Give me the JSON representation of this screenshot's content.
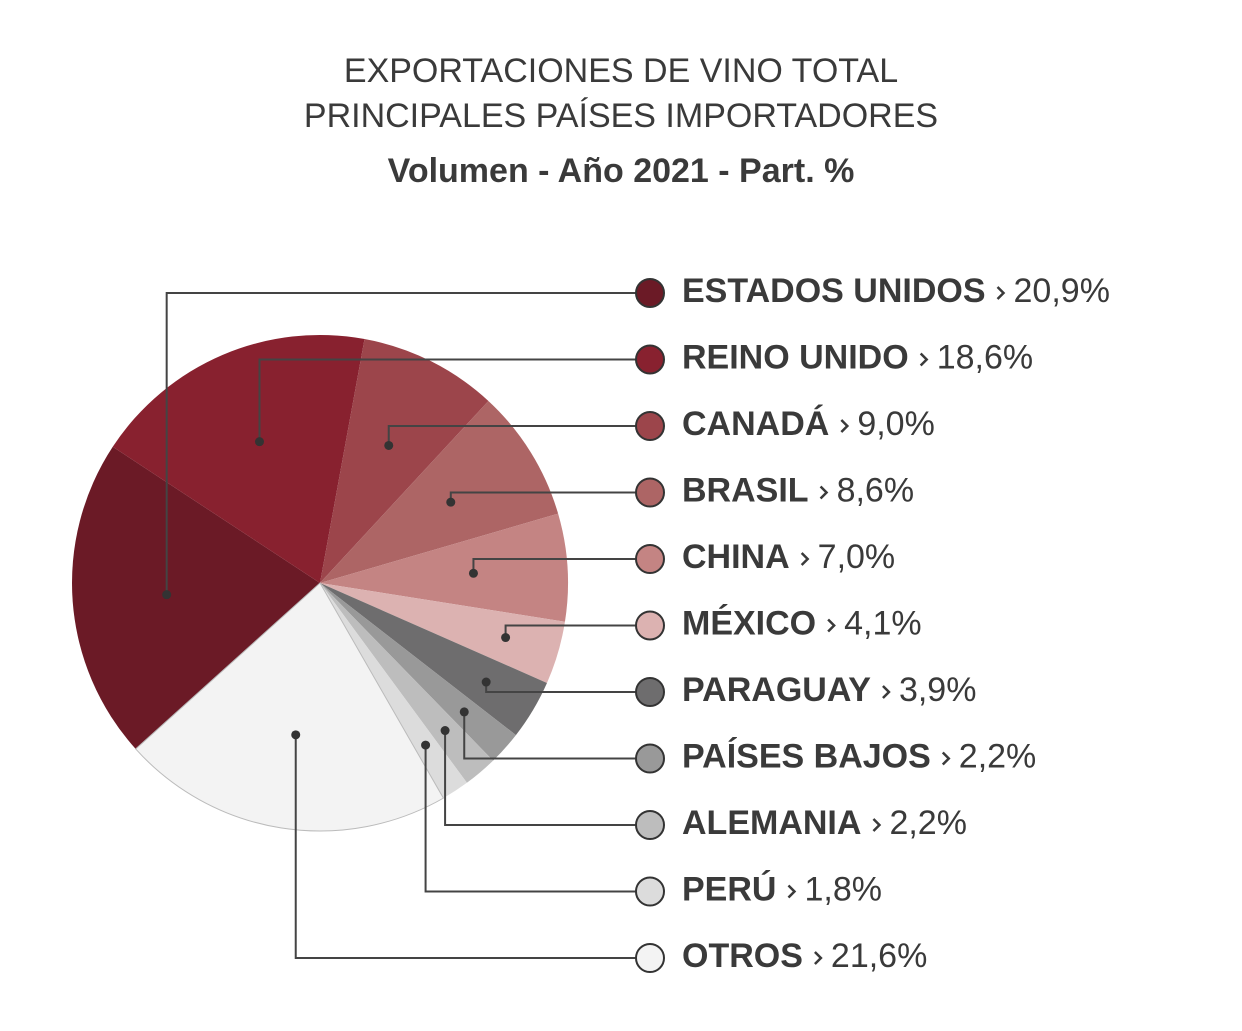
{
  "chart_data": {
    "type": "pie",
    "title": [
      "EXPORTACIONES DE VINO TOTAL",
      "PRINCIPALES PAÍSES IMPORTADORES"
    ],
    "subtitle": "Volumen - Año 2021  - Part. %",
    "categories": [
      "ESTADOS UNIDOS",
      "REINO UNIDO",
      "CANADÁ",
      "BRASIL",
      "CHINA",
      "MÉXICO",
      "PARAGUAY",
      "PAÍSES BAJOS",
      "ALEMANIA",
      "PERÚ",
      "OTROS"
    ],
    "values": [
      20.9,
      18.6,
      9.0,
      8.6,
      7.0,
      4.1,
      3.9,
      2.2,
      2.2,
      1.8,
      21.6
    ],
    "value_labels": [
      "20,9%",
      "18,6%",
      "9,0%",
      "8,6%",
      "7,0%",
      "4,1%",
      "3,9%",
      "2,2%",
      "2,2%",
      "1,8%",
      "21,6%"
    ],
    "colors": [
      "#6b1a26",
      "#88212f",
      "#9c454b",
      "#ad6565",
      "#c48483",
      "#dcb2b1",
      "#6e6d6e",
      "#999999",
      "#bdbdbd",
      "#dcdcdc",
      "#f3f3f3"
    ]
  }
}
